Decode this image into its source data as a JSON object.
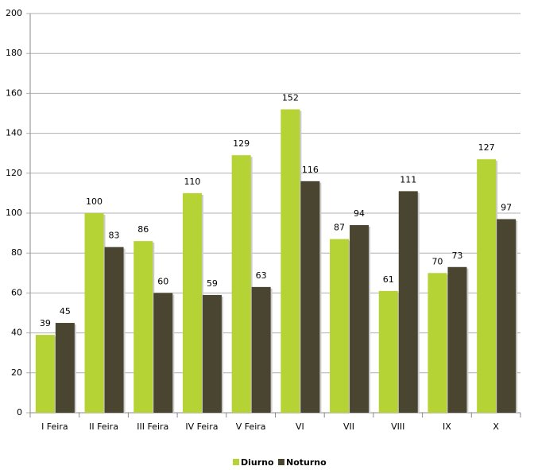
{
  "chart_data": {
    "type": "bar",
    "categories": [
      "I Feira",
      "II Feira",
      "III Feira",
      "IV Feira",
      "V Feira",
      "VI",
      "VII",
      "VIII",
      "IX",
      "X"
    ],
    "series": [
      {
        "name": "Diurno",
        "color": "#b5d334",
        "values": [
          39,
          100,
          86,
          110,
          129,
          152,
          87,
          61,
          70,
          127
        ]
      },
      {
        "name": "Noturno",
        "color": "#4a4530",
        "values": [
          45,
          83,
          60,
          59,
          63,
          116,
          94,
          111,
          73,
          97
        ]
      }
    ],
    "ylim": [
      0,
      200
    ],
    "yticks": [
      0,
      20,
      40,
      60,
      80,
      100,
      120,
      140,
      160,
      180,
      200
    ],
    "grid": true,
    "legend": "bottom"
  }
}
